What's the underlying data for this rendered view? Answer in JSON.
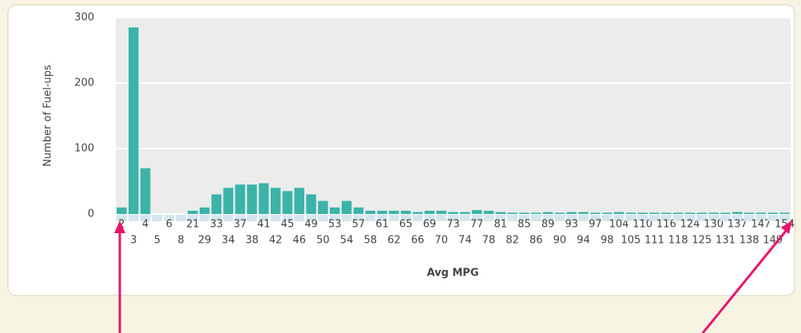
{
  "chart_data": {
    "type": "bar",
    "y_label": "Number of Fuel-ups",
    "x_label": "Avg MPG",
    "categories": [
      "2",
      "3",
      "4",
      "5",
      "6",
      "8",
      "21",
      "29",
      "33",
      "34",
      "37",
      "38",
      "41",
      "42",
      "45",
      "46",
      "49",
      "50",
      "53",
      "54",
      "57",
      "58",
      "61",
      "62",
      "65",
      "66",
      "69",
      "70",
      "73",
      "74",
      "77",
      "78",
      "81",
      "82",
      "85",
      "86",
      "89",
      "90",
      "93",
      "94",
      "97",
      "98",
      "104",
      "105",
      "110",
      "111",
      "116",
      "118",
      "124",
      "125",
      "130",
      "131",
      "137",
      "138",
      "147",
      "149",
      "154"
    ],
    "values": [
      10,
      285,
      70,
      0,
      0,
      0,
      5,
      10,
      30,
      40,
      45,
      45,
      47,
      40,
      35,
      40,
      30,
      20,
      10,
      20,
      10,
      5,
      5,
      5,
      5,
      3,
      5,
      5,
      3,
      3,
      6,
      5,
      3,
      2,
      2,
      2,
      3,
      2,
      3,
      3,
      2,
      2,
      3,
      2,
      2,
      2,
      2,
      2,
      2,
      2,
      2,
      2,
      3,
      2,
      2,
      2,
      2
    ],
    "color": "#3bb3a9",
    "ylim": [
      0,
      300
    ],
    "yticks": [
      0,
      100,
      200,
      300
    ],
    "grid": true
  }
}
